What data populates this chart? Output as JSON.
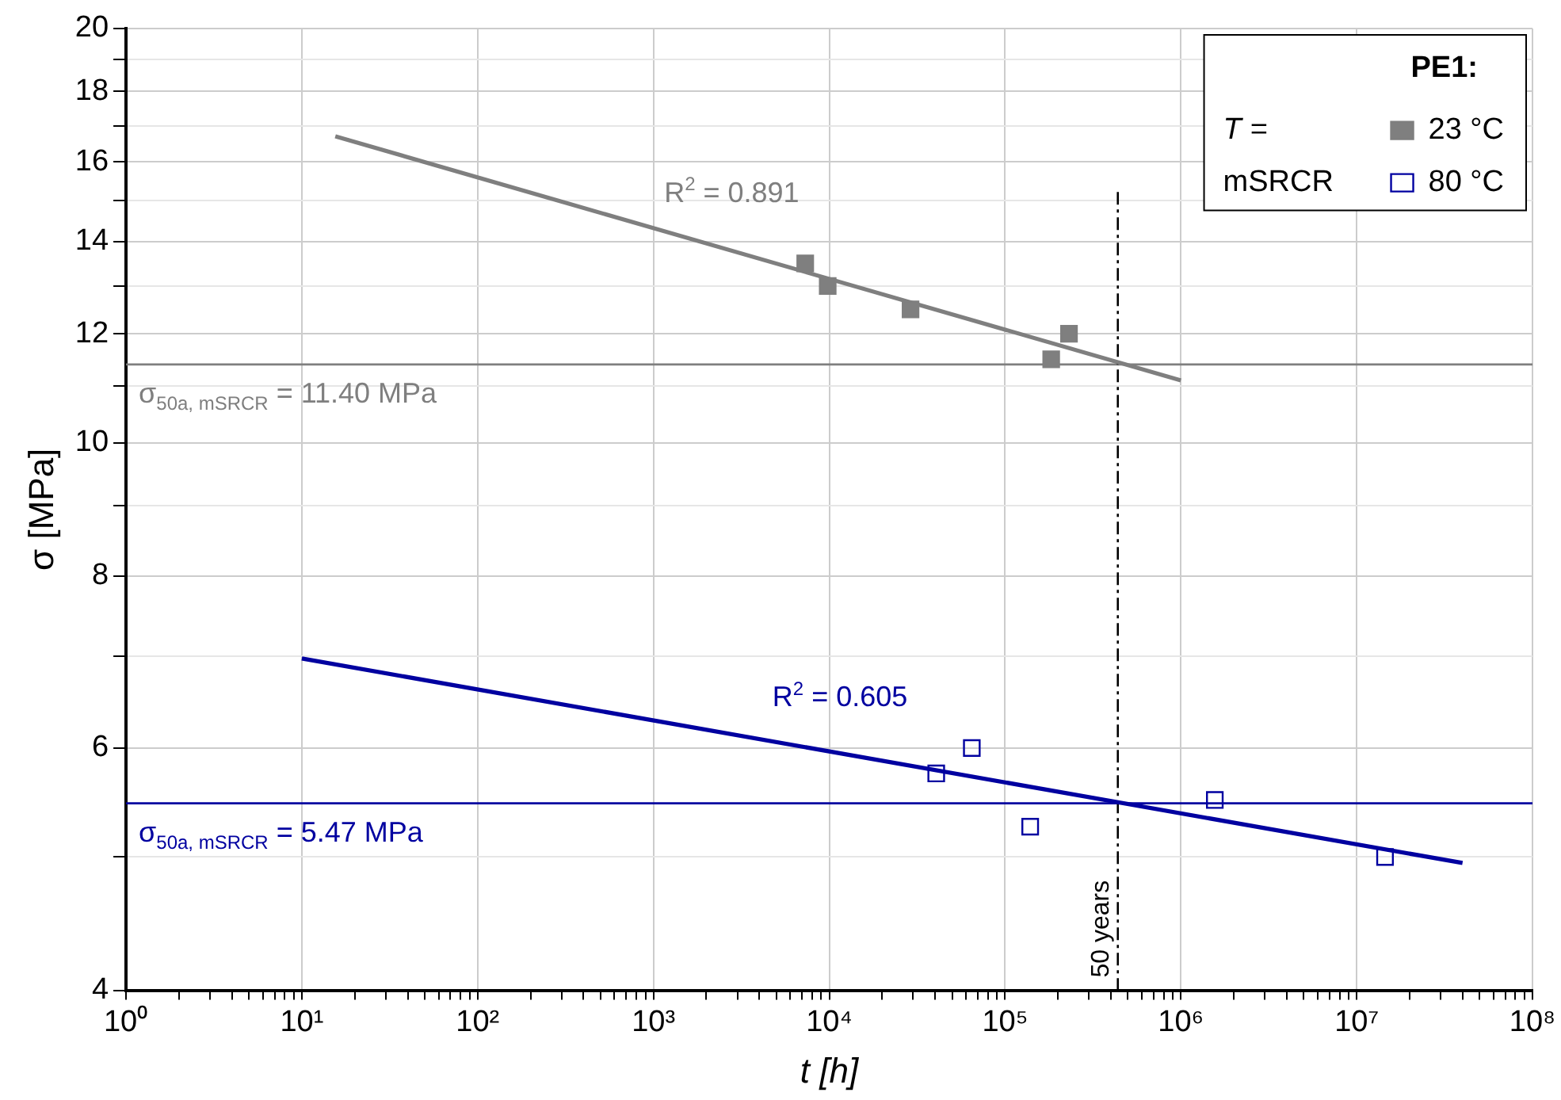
{
  "chart_data": {
    "type": "scatter",
    "xlabel": "t [h]",
    "ylabel": "σ [MPa]",
    "legend_title": "PE1:",
    "log": "xy",
    "grid": true,
    "legend": "top right",
    "xlim": [
      1,
      100000000
    ],
    "ylim": [
      4,
      20
    ],
    "xticks": [
      {
        "value": 1,
        "label": "10⁰"
      },
      {
        "value": 2,
        "label": null
      },
      {
        "value": 3,
        "label": null
      },
      {
        "value": 4,
        "label": null
      },
      {
        "value": 5,
        "label": null
      },
      {
        "value": 6,
        "label": null
      },
      {
        "value": 7,
        "label": null
      },
      {
        "value": 8,
        "label": null
      },
      {
        "value": 9,
        "label": null
      },
      {
        "value": 10,
        "label": "10¹"
      },
      {
        "value": 20,
        "label": null
      },
      {
        "value": 30,
        "label": null
      },
      {
        "value": 40,
        "label": null
      },
      {
        "value": 50,
        "label": null
      },
      {
        "value": 60,
        "label": null
      },
      {
        "value": 70,
        "label": null
      },
      {
        "value": 80,
        "label": null
      },
      {
        "value": 90,
        "label": null
      },
      {
        "value": 100,
        "label": "10²"
      },
      {
        "value": 200,
        "label": null
      },
      {
        "value": 300,
        "label": null
      },
      {
        "value": 400,
        "label": null
      },
      {
        "value": 500,
        "label": null
      },
      {
        "value": 600,
        "label": null
      },
      {
        "value": 700,
        "label": null
      },
      {
        "value": 800,
        "label": null
      },
      {
        "value": 900,
        "label": null
      },
      {
        "value": 1000,
        "label": "10³"
      },
      {
        "value": 2000,
        "label": null
      },
      {
        "value": 3000,
        "label": null
      },
      {
        "value": 4000,
        "label": null
      },
      {
        "value": 5000,
        "label": null
      },
      {
        "value": 6000,
        "label": null
      },
      {
        "value": 7000,
        "label": null
      },
      {
        "value": 8000,
        "label": null
      },
      {
        "value": 9000,
        "label": null
      },
      {
        "value": 10000,
        "label": "10⁴"
      },
      {
        "value": 20000,
        "label": null
      },
      {
        "value": 30000,
        "label": null
      },
      {
        "value": 40000,
        "label": null
      },
      {
        "value": 50000,
        "label": null
      },
      {
        "value": 60000,
        "label": null
      },
      {
        "value": 70000,
        "label": null
      },
      {
        "value": 80000,
        "label": null
      },
      {
        "value": 90000,
        "label": null
      },
      {
        "value": 100000,
        "label": "10⁵"
      },
      {
        "value": 200000,
        "label": null
      },
      {
        "value": 300000,
        "label": null
      },
      {
        "value": 400000,
        "label": null
      },
      {
        "value": 500000,
        "label": null
      },
      {
        "value": 600000,
        "label": null
      },
      {
        "value": 700000,
        "label": null
      },
      {
        "value": 800000,
        "label": null
      },
      {
        "value": 900000,
        "label": null
      },
      {
        "value": 1000000,
        "label": "10⁶"
      },
      {
        "value": 2000000,
        "label": null
      },
      {
        "value": 3000000,
        "label": null
      },
      {
        "value": 4000000,
        "label": null
      },
      {
        "value": 5000000,
        "label": null
      },
      {
        "value": 6000000,
        "label": null
      },
      {
        "value": 7000000,
        "label": null
      },
      {
        "value": 8000000,
        "label": null
      },
      {
        "value": 9000000,
        "label": null
      },
      {
        "value": 10000000,
        "label": "10⁷"
      },
      {
        "value": 20000000,
        "label": null
      },
      {
        "value": 30000000,
        "label": null
      },
      {
        "value": 40000000,
        "label": null
      },
      {
        "value": 50000000,
        "label": null
      },
      {
        "value": 60000000,
        "label": null
      },
      {
        "value": 70000000,
        "label": null
      },
      {
        "value": 80000000,
        "label": null
      },
      {
        "value": 90000000,
        "label": null
      },
      {
        "value": 100000000,
        "label": "10⁸"
      }
    ],
    "yticks": [
      4,
      {
        "value": 5,
        "label": null
      },
      6,
      {
        "value": 7,
        "label": null
      },
      8,
      {
        "value": 9,
        "label": null
      },
      10,
      {
        "value": 11,
        "label": null
      },
      12,
      {
        "value": 13,
        "label": null
      },
      14,
      {
        "value": 15,
        "label": null
      },
      16,
      {
        "value": 17,
        "label": null
      },
      18,
      {
        "value": 19,
        "label": null
      },
      20
    ],
    "series": [
      {
        "name": "23 °C",
        "marker": "square",
        "color": "#7f7f7f",
        "x": [
          7300,
          9800,
          29000,
          183000,
          231000
        ],
        "values": [
          13.5,
          13.0,
          12.5,
          11.5,
          12.0
        ]
      },
      {
        "type": "line",
        "color": "#7f7f7f",
        "x": [
          15.5,
          1000000
        ],
        "values": [
          16.7,
          11.1
        ]
      },
      {
        "name": "80 °C",
        "marker": "square",
        "color": "#0000a0",
        "x": [
          40600,
          64700,
          139000,
          1560000,
          14500000
        ],
        "values": [
          5.75,
          6.0,
          5.26,
          5.5,
          5.0
        ]
      },
      {
        "type": "line",
        "color": "#0000a0",
        "x": [
          10,
          40000000
        ],
        "values": [
          6.97,
          4.95
        ]
      }
    ],
    "ref_lines": [
      {
        "axis": "y",
        "value": 11.4,
        "label": "σ$_{50a, mSRCR}$ = 11.40 MPa",
        "color": "#7f7f7f"
      },
      {
        "axis": "y",
        "value": 5.47,
        "label": "σ$_{50a, mSRCR}$ = 5.47 MPa",
        "color": "#0000a0"
      },
      {
        "axis": "x",
        "value": 438000,
        "label": "50 years",
        "color": "#000000",
        "line_style": "dashed"
      }
    ],
    "annotations": [
      "T =",
      "mSRCR",
      "R$^{2}$ = 0.891",
      "R$^{2}$ = 0.605"
    ]
  }
}
